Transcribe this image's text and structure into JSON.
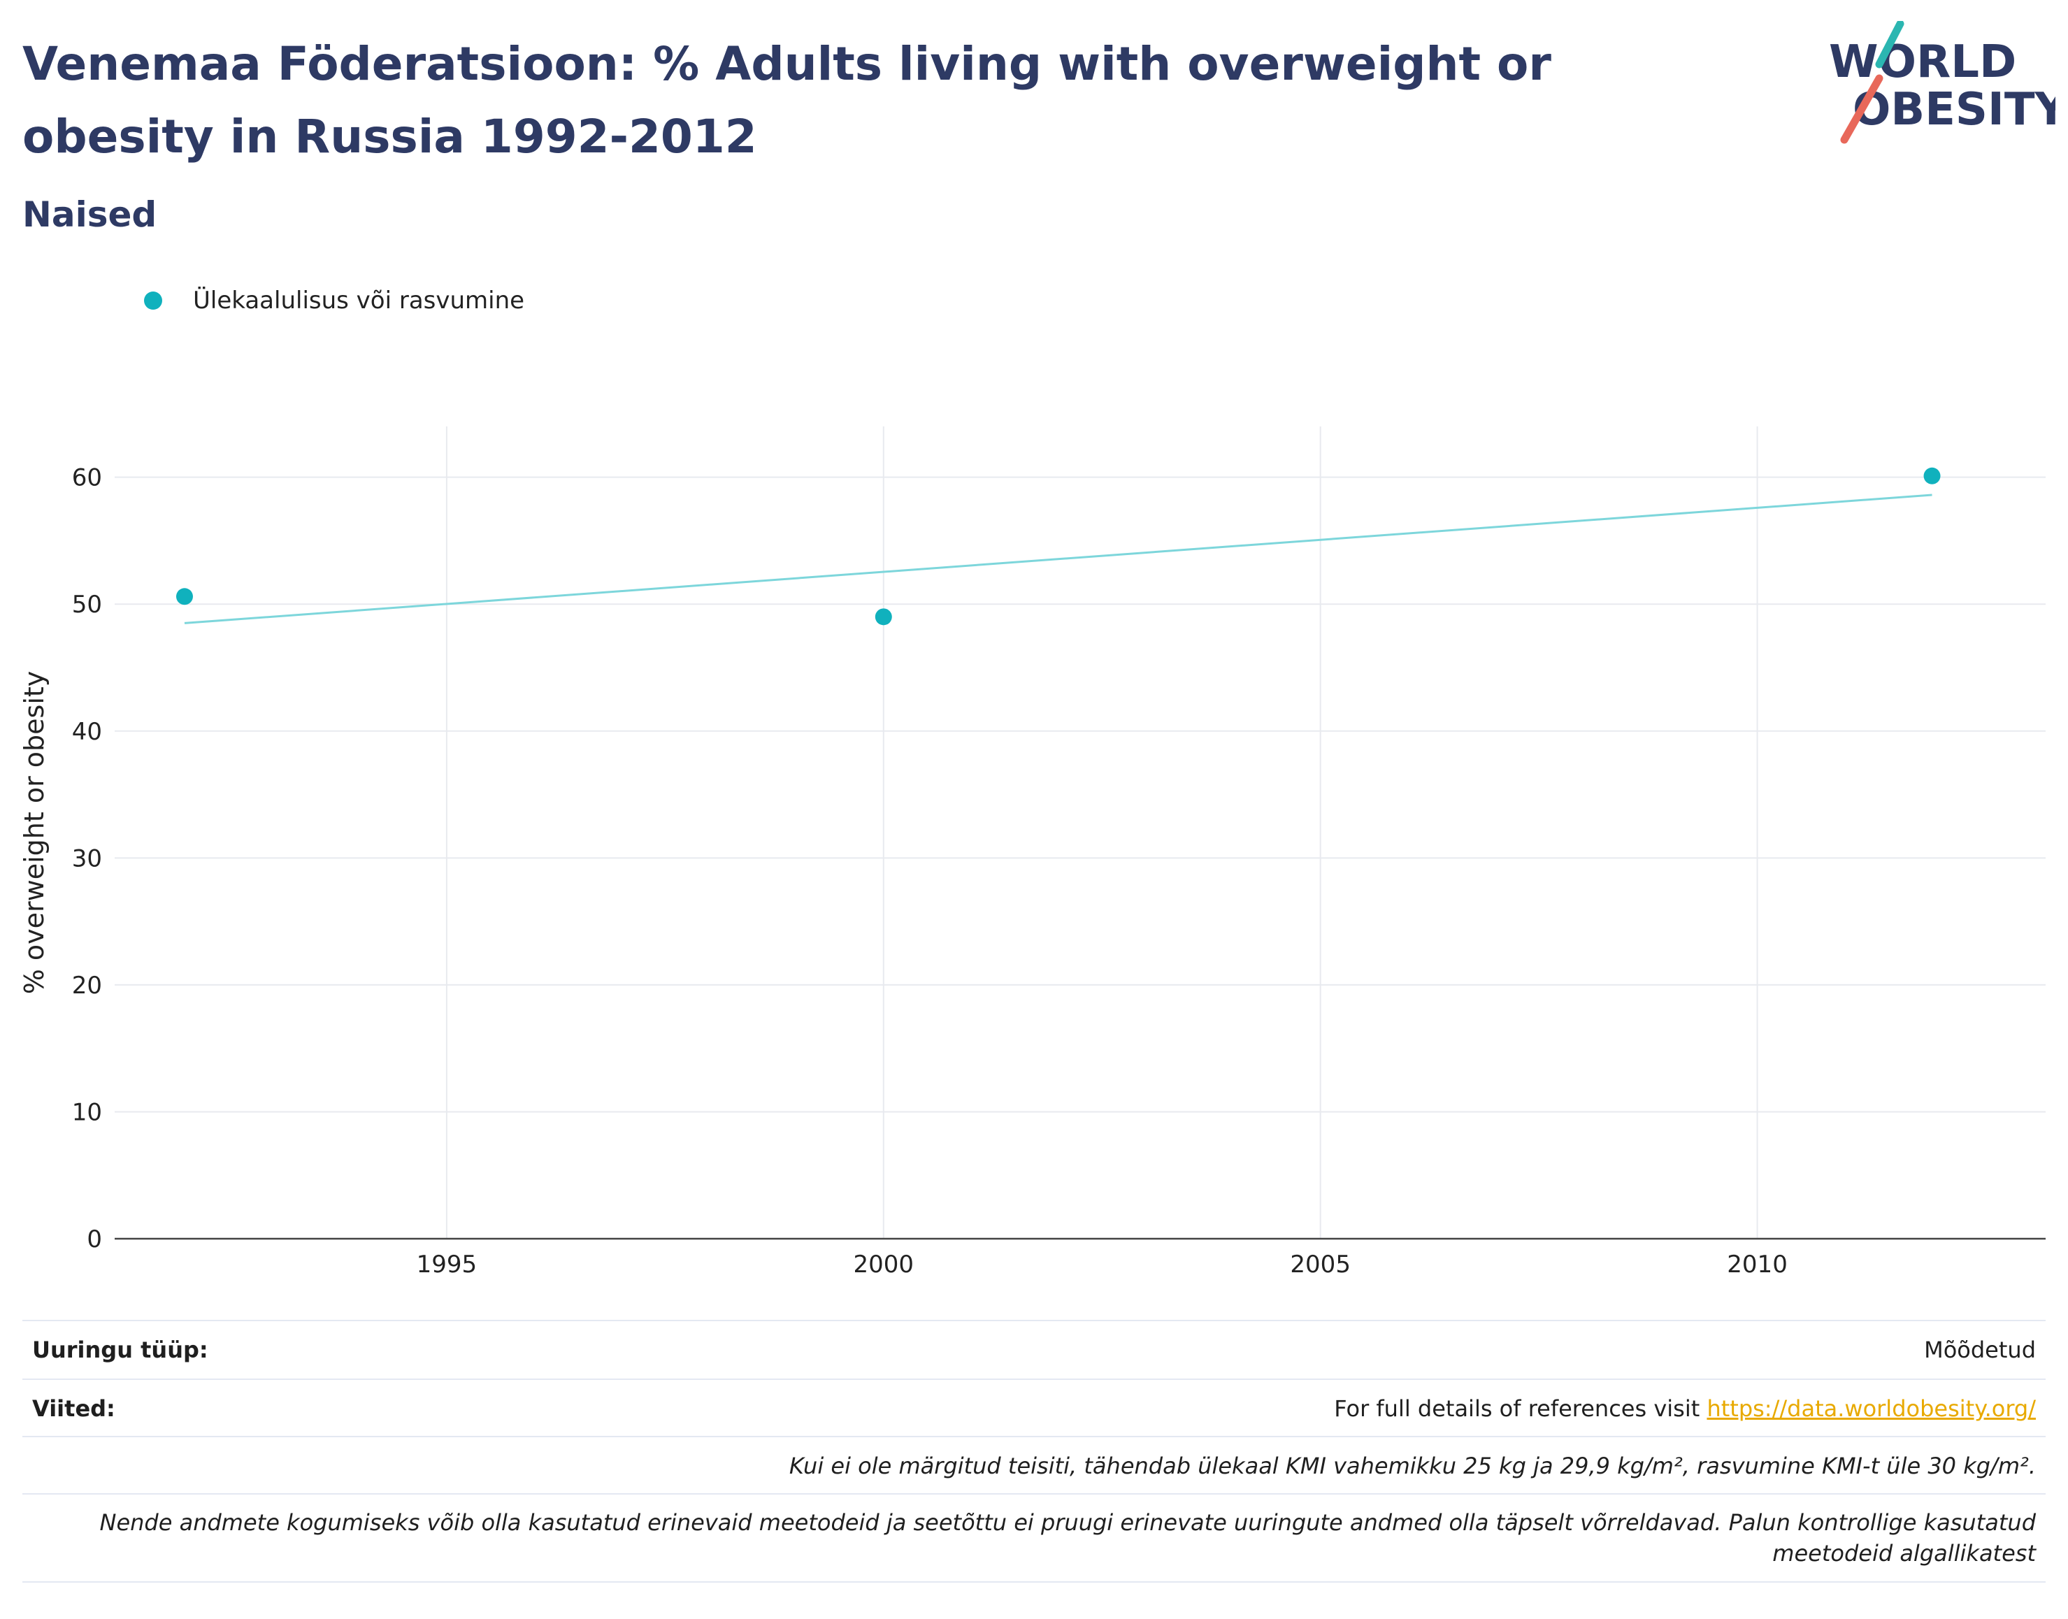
{
  "header": {
    "title": "Venemaa Föderatsioon: % Adults living with overweight or obesity in Russia 1992-2012",
    "subtitle": "Naised"
  },
  "logo": {
    "line1": "WORLD",
    "line2": "OBESITY",
    "colors": {
      "text": "#2e3a64",
      "teal_slash": "#2bb6b1",
      "coral_slash": "#e8685a"
    }
  },
  "legend": {
    "label": "Ülekaalulisus või rasvumine",
    "color": "#10b1bd"
  },
  "chart_data": {
    "type": "scatter",
    "title": "",
    "xlabel": "",
    "ylabel": "% overweight or obesity",
    "xlim": [
      1991.2,
      2013.3
    ],
    "ylim": [
      0,
      64
    ],
    "x_ticks": [
      1995,
      2000,
      2005,
      2010
    ],
    "y_ticks": [
      0,
      10,
      20,
      30,
      40,
      50,
      60
    ],
    "grid": true,
    "legend_position": "top-left",
    "series": [
      {
        "name": "Ülekaalulisus või rasvumine",
        "color": "#10b1bd",
        "points": [
          {
            "x": 1992,
            "y": 50.6
          },
          {
            "x": 2000,
            "y": 49.0
          },
          {
            "x": 2012,
            "y": 60.1
          }
        ]
      }
    ],
    "trendline": {
      "color": "#7dd6db",
      "x": [
        1992,
        2012
      ],
      "y": [
        48.5,
        58.6
      ]
    }
  },
  "footer": {
    "survey_type_label": "Uuringu tüüp:",
    "survey_type_value": "Mõõdetud",
    "references_label": "Viited:",
    "references_text": "For full details of references visit ",
    "references_link": "https://data.worldobesity.org/",
    "definition_note": "Kui ei ole märgitud teisiti, tähendab ülekaal KMI vahemikku 25 kg ja 29,9 kg/m², rasvumine KMI-t üle 30 kg/m².",
    "comparability_note": "Nende andmete kogumiseks võib olla kasutatud erinevaid meetodeid ja seetõttu ei pruugi erinevate uuringute andmed olla täpselt võrreldavad. Palun kontrollige kasutatud meetodeid algallikatest"
  }
}
